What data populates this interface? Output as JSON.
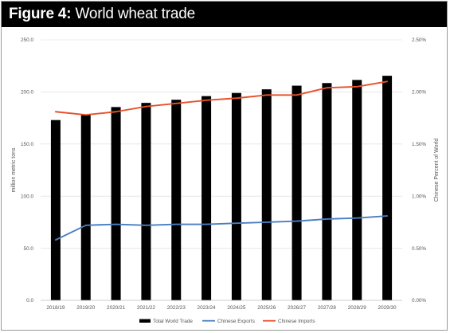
{
  "figure": {
    "title_prefix": "Figure 4:",
    "title_text": " World wheat trade"
  },
  "chart_data": {
    "type": "bar",
    "title": "Figure 4: World wheat trade",
    "xlabel": "",
    "ylabel": "million metric tons",
    "y2label": "Chinese Percent of World",
    "ylim": [
      0,
      250
    ],
    "y2lim": [
      0,
      0.025
    ],
    "yticks": [
      "0.0",
      "50.0",
      "100.0",
      "150.0",
      "200.0",
      "250.0"
    ],
    "y2ticks": [
      "0.00%",
      "0.50%",
      "1.00%",
      "1.50%",
      "2.00%",
      "2.50%"
    ],
    "grid": true,
    "legend_position": "bottom",
    "categories": [
      "2018/19",
      "2019/20",
      "2020/21",
      "2021/22",
      "2022/23",
      "2023/24",
      "2024/25",
      "2025/26",
      "2026/27",
      "2027/28",
      "2028/29",
      "2029/30"
    ],
    "series": [
      {
        "name": "Total World Trade",
        "type": "bar",
        "axis": "left",
        "color": "#000000",
        "values": [
          173,
          178,
          185.5,
          189.5,
          192.5,
          196,
          199,
          202.5,
          206,
          208.5,
          211.5,
          215.5
        ]
      },
      {
        "name": "Chinese Exports",
        "type": "line",
        "axis": "right",
        "color": "#4a7ec2",
        "values": [
          0.0058,
          0.0072,
          0.0073,
          0.0072,
          0.0073,
          0.0073,
          0.0074,
          0.0075,
          0.0076,
          0.0078,
          0.0079,
          0.0081
        ]
      },
      {
        "name": "Chinese Imports",
        "type": "line",
        "axis": "right",
        "color": "#e8502a",
        "values": [
          0.0181,
          0.0178,
          0.0181,
          0.0186,
          0.0189,
          0.0192,
          0.0194,
          0.0197,
          0.0197,
          0.0204,
          0.0205,
          0.021
        ]
      }
    ]
  }
}
